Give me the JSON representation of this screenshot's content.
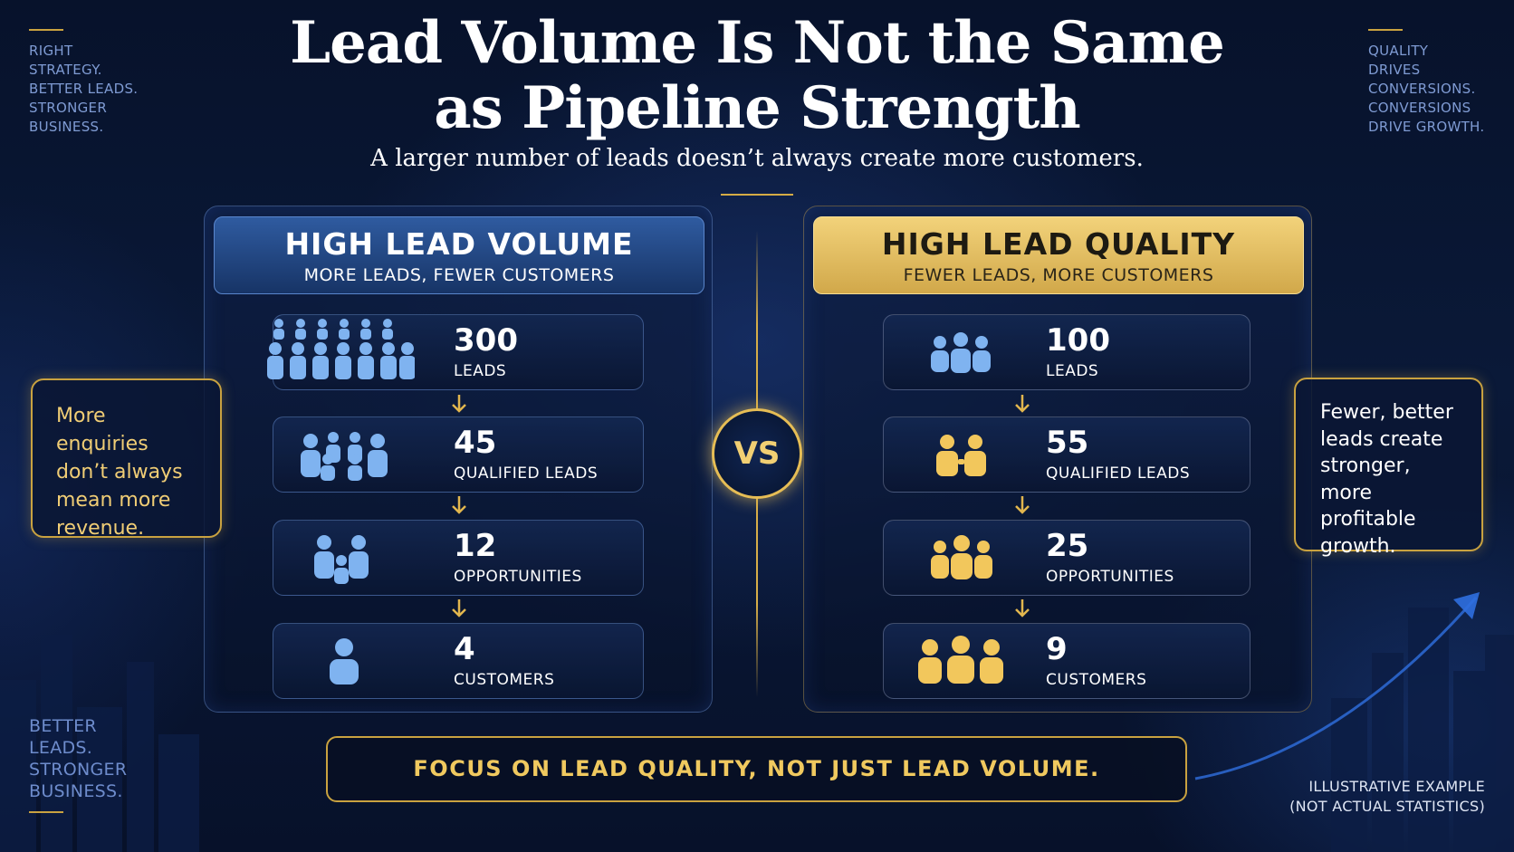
{
  "title": "Lead Volume Is Not the Same as Pipeline Strength",
  "subtitle": "A larger number of leads doesn’t always create more customers.",
  "corner_top_left": [
    "RIGHT",
    "STRATEGY.",
    "BETTER LEADS.",
    "STRONGER",
    "BUSINESS."
  ],
  "corner_top_right": [
    "QUALITY",
    "DRIVES",
    "CONVERSIONS.",
    "CONVERSIONS",
    "DRIVE GROWTH."
  ],
  "corner_bottom_left": [
    "BETTER",
    "LEADS.",
    "STRONGER",
    "BUSINESS."
  ],
  "left_panel": {
    "title": "HIGH LEAD VOLUME",
    "subtitle": "MORE LEADS, FEWER CUSTOMERS",
    "stages": [
      {
        "value": "300",
        "label": "LEADS"
      },
      {
        "value": "45",
        "label": "QUALIFIED LEADS"
      },
      {
        "value": "12",
        "label": "OPPORTUNITIES"
      },
      {
        "value": "4",
        "label": "CUSTOMERS"
      }
    ],
    "accent": "#7fb3f0"
  },
  "right_panel": {
    "title": "HIGH LEAD QUALITY",
    "subtitle": "FEWER LEADS, MORE CUSTOMERS",
    "stages": [
      {
        "value": "100",
        "label": "LEADS"
      },
      {
        "value": "55",
        "label": "QUALIFIED LEADS"
      },
      {
        "value": "25",
        "label": "OPPORTUNITIES"
      },
      {
        "value": "9",
        "label": "CUSTOMERS"
      }
    ],
    "accent": "#f2c75c"
  },
  "vs_label": "VS",
  "note_left": [
    "More enquiries",
    "don’t always",
    "mean more",
    "revenue."
  ],
  "note_right": [
    "Fewer, better",
    "leads create",
    "stronger,",
    "more profitable",
    "growth."
  ],
  "banner": "FOCUS ON LEAD QUALITY, NOT JUST LEAD VOLUME.",
  "disclaimer": [
    "ILLUSTRATIVE EXAMPLE",
    "(NOT ACTUAL STATISTICS)"
  ]
}
